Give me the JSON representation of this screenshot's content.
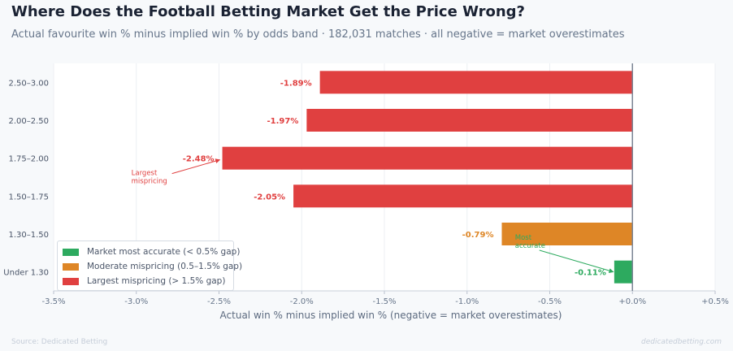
{
  "header": {
    "title": "Where Does the Football Betting Market Get the Price Wrong?",
    "subtitle": "Actual favourite win % minus implied win % by odds band · 182,031 matches · all negative = market overestimates"
  },
  "footer": {
    "source": "Source: Dedicated Betting",
    "brand": "dedicatedbetting.com"
  },
  "colors": {
    "accurate": "#2daa5f",
    "moderate": "#de8626",
    "largest": "#e04040",
    "zero_line": "#7a8494"
  },
  "chart_data": {
    "type": "bar",
    "orientation": "horizontal",
    "categories": [
      "2.50–3.00",
      "2.00–2.50",
      "1.75–2.00",
      "1.50–1.75",
      "1.30–1.50",
      "Under 1.30"
    ],
    "values": [
      -1.89,
      -1.97,
      -2.48,
      -2.05,
      -0.79,
      -0.11
    ],
    "value_labels": [
      "-1.89%",
      "-1.97%",
      "-2.48%",
      "-2.05%",
      "-0.79%",
      "-0.11%"
    ],
    "classes": [
      "largest",
      "largest",
      "largest",
      "largest",
      "moderate",
      "accurate"
    ],
    "xlabel": "Actual win % minus implied win % (negative = market overestimates)",
    "xlim": [
      -3.5,
      0.5
    ],
    "xticks": [
      -3.5,
      -3.0,
      -2.5,
      -2.0,
      -1.5,
      -1.0,
      -0.5,
      0.0,
      0.5
    ],
    "xtick_labels": [
      "-3.5%",
      "-3.0%",
      "-2.5%",
      "-2.0%",
      "-1.5%",
      "-1.0%",
      "-0.5%",
      "+0.0%",
      "+0.5%"
    ],
    "grid": "vertical",
    "legend_position": "bottom-left",
    "legend": [
      {
        "key": "accurate",
        "label": "Market most accurate (< 0.5% gap)"
      },
      {
        "key": "moderate",
        "label": "Moderate mispricing (0.5–1.5% gap)"
      },
      {
        "key": "largest",
        "label": "Largest mispricing (> 1.5% gap)"
      }
    ],
    "annotations": [
      {
        "lines": [
          "Largest",
          "mispricing"
        ],
        "class": "largest",
        "target_category": "1.75–2.00",
        "target_value": -2.48,
        "text_x": -3.03,
        "text_category_offset": 0.45
      },
      {
        "lines": [
          "Most",
          "accurate"
        ],
        "class": "accurate",
        "target_category": "Under 1.30",
        "target_value": -0.11,
        "text_x": -0.71,
        "text_category_offset": -0.85
      }
    ]
  }
}
